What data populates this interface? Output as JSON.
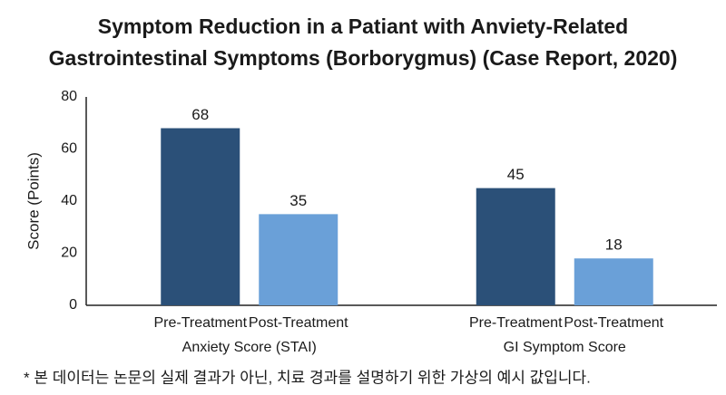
{
  "chart_data": {
    "type": "bar",
    "title": [
      "Symptom Reduction in a Patiant with Anviety-Related",
      "Gastrointestinal Symptoms (Borborygmus) (Case Report, 2020)"
    ],
    "y_label": "Score (Points)",
    "categories": [
      "Anxiety Score (STAI)",
      "GI Symptom Score"
    ],
    "series": [
      {
        "name": "Pre-Treatment",
        "color": "#2b5078",
        "values": [
          68,
          45
        ]
      },
      {
        "name": "Post-Treatment",
        "color": "#6aa0d8",
        "values": [
          35,
          18
        ]
      }
    ],
    "ylim": [
      0,
      80
    ],
    "yticks": [
      0,
      20,
      40,
      60,
      80
    ],
    "grid": false,
    "footnote": "* 본 데이터는 논문의 실제 결과가 아닌, 치료 경과를 설명하기 위한 가상의 예시 값입니다."
  }
}
